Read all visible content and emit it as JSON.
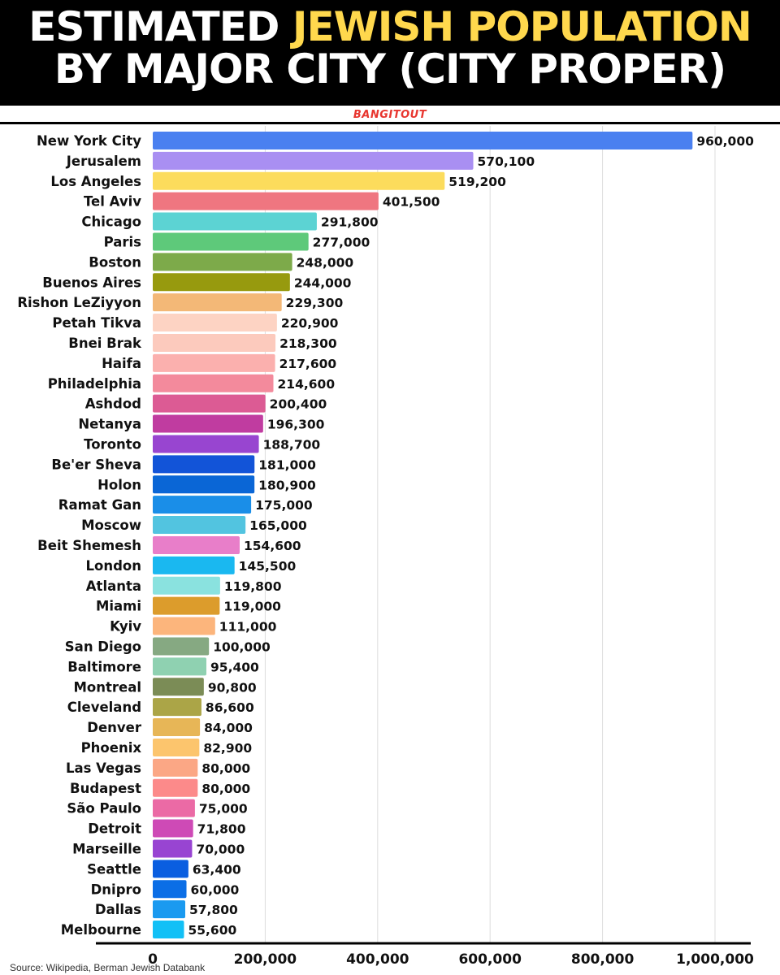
{
  "header": {
    "title_line1_pre": "ESTIMATED ",
    "title_line1_accent": "JEWISH POPULATION",
    "title_line2": "BY MAJOR CITY (CITY PROPER)",
    "brand": "BANGITOUT",
    "accent_color": "#ffd84d",
    "brand_color": "#e8362f"
  },
  "source": "Source: Wikipedia, Berman Jewish Databank",
  "chart_data": {
    "type": "bar",
    "orientation": "horizontal",
    "title": "ESTIMATED JEWISH POPULATION BY MAJOR CITY (CITY PROPER)",
    "xlabel": "",
    "ylabel": "",
    "xlim": [
      0,
      1000000
    ],
    "grid": true,
    "xticks": [
      {
        "value": 0,
        "label": "0"
      },
      {
        "value": 200000,
        "label": "200,000"
      },
      {
        "value": 400000,
        "label": "400,000"
      },
      {
        "value": 600000,
        "label": "600,000"
      },
      {
        "value": 800000,
        "label": "800,000"
      },
      {
        "value": 1000000,
        "label": "1,000,000"
      }
    ],
    "bars": [
      {
        "label": "New York City",
        "value": 960000,
        "value_label": "960,000",
        "color": "#4a80f0"
      },
      {
        "label": "Jerusalem",
        "value": 570100,
        "value_label": "570,100",
        "color": "#a98ff2"
      },
      {
        "label": "Los Angeles",
        "value": 519200,
        "value_label": "519,200",
        "color": "#fcdc5c"
      },
      {
        "label": "Tel Aviv",
        "value": 401500,
        "value_label": "401,500",
        "color": "#ef7680"
      },
      {
        "label": "Chicago",
        "value": 291800,
        "value_label": "291,800",
        "color": "#5cd3d3"
      },
      {
        "label": "Paris",
        "value": 277000,
        "value_label": "277,000",
        "color": "#5ec97a"
      },
      {
        "label": "Boston",
        "value": 248000,
        "value_label": "248,000",
        "color": "#7daa4a"
      },
      {
        "label": "Buenos Aires",
        "value": 244000,
        "value_label": "244,000",
        "color": "#979a0e"
      },
      {
        "label": "Rishon LeZiyyon",
        "value": 229300,
        "value_label": "229,300",
        "color": "#f3b877"
      },
      {
        "label": "Petah Tikva",
        "value": 220900,
        "value_label": "220,900",
        "color": "#fdd3c3"
      },
      {
        "label": "Bnei Brak",
        "value": 218300,
        "value_label": "218,300",
        "color": "#fccabd"
      },
      {
        "label": "Haifa",
        "value": 217600,
        "value_label": "217,600",
        "color": "#fbb0ae"
      },
      {
        "label": "Philadelphia",
        "value": 214600,
        "value_label": "214,600",
        "color": "#f38a9c"
      },
      {
        "label": "Ashdod",
        "value": 200400,
        "value_label": "200,400",
        "color": "#dc5b94"
      },
      {
        "label": "Netanya",
        "value": 196300,
        "value_label": "196,300",
        "color": "#c03ca0"
      },
      {
        "label": "Toronto",
        "value": 188700,
        "value_label": "188,700",
        "color": "#9845d0"
      },
      {
        "label": "Be'er Sheva",
        "value": 181000,
        "value_label": "181,000",
        "color": "#1254d8"
      },
      {
        "label": "Holon",
        "value": 180900,
        "value_label": "180,900",
        "color": "#0a66d6"
      },
      {
        "label": "Ramat Gan",
        "value": 175000,
        "value_label": "175,000",
        "color": "#1a8ee8"
      },
      {
        "label": "Moscow",
        "value": 165000,
        "value_label": "165,000",
        "color": "#52c4e0"
      },
      {
        "label": "Beit Shemesh",
        "value": 154600,
        "value_label": "154,600",
        "color": "#e87ec9"
      },
      {
        "label": "London",
        "value": 145500,
        "value_label": "145,500",
        "color": "#1ab8f0"
      },
      {
        "label": "Atlanta",
        "value": 119800,
        "value_label": "119,800",
        "color": "#8ae2df"
      },
      {
        "label": "Miami",
        "value": 119000,
        "value_label": "119,000",
        "color": "#dc9c2c"
      },
      {
        "label": "Kyiv",
        "value": 111000,
        "value_label": "111,000",
        "color": "#fcb57c"
      },
      {
        "label": "San Diego",
        "value": 100000,
        "value_label": "100,000",
        "color": "#86a982"
      },
      {
        "label": "Baltimore",
        "value": 95400,
        "value_label": "95,400",
        "color": "#8fd1b1"
      },
      {
        "label": "Montreal",
        "value": 90800,
        "value_label": "90,800",
        "color": "#7b8c56"
      },
      {
        "label": "Cleveland",
        "value": 86600,
        "value_label": "86,600",
        "color": "#aba547"
      },
      {
        "label": "Denver",
        "value": 84000,
        "value_label": "84,000",
        "color": "#e7b657"
      },
      {
        "label": "Phoenix",
        "value": 82900,
        "value_label": "82,900",
        "color": "#fcc56d"
      },
      {
        "label": "Las Vegas",
        "value": 80000,
        "value_label": "80,000",
        "color": "#fba785"
      },
      {
        "label": "Budapest",
        "value": 80000,
        "value_label": "80,000",
        "color": "#fc8a8a"
      },
      {
        "label": "São Paulo",
        "value": 75000,
        "value_label": "75,000",
        "color": "#eb6aa5"
      },
      {
        "label": "Detroit",
        "value": 71800,
        "value_label": "71,800",
        "color": "#ce4ab6"
      },
      {
        "label": "Marseille",
        "value": 70000,
        "value_label": "70,000",
        "color": "#9844d2"
      },
      {
        "label": "Seattle",
        "value": 63400,
        "value_label": "63,400",
        "color": "#0a5ee0"
      },
      {
        "label": "Dnipro",
        "value": 60000,
        "value_label": "60,000",
        "color": "#0b6ee6"
      },
      {
        "label": "Dallas",
        "value": 57800,
        "value_label": "57,800",
        "color": "#1a9af0"
      },
      {
        "label": "Melbourne",
        "value": 55600,
        "value_label": "55,600",
        "color": "#12c0f6"
      }
    ]
  }
}
